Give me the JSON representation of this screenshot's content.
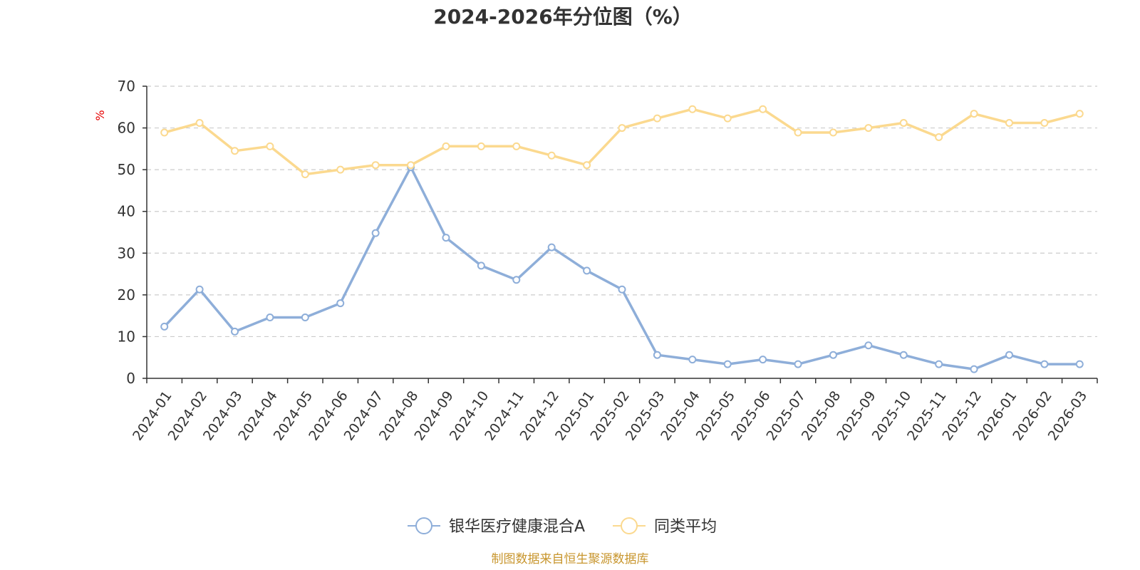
{
  "chart_data": {
    "type": "line",
    "title": "2024-2026年分位图（%）",
    "y_unit": "%",
    "ylim": [
      0,
      70
    ],
    "y_ticks": [
      0,
      10,
      20,
      30,
      40,
      50,
      60,
      70
    ],
    "grid": "horizontal dashed",
    "legend_position": "bottom-center",
    "categories": [
      "2024-01",
      "2024-02",
      "2024-03",
      "2024-04",
      "2024-05",
      "2024-06",
      "2024-07",
      "2024-08",
      "2024-09",
      "2024-10",
      "2024-11",
      "2024-12",
      "2025-01",
      "2025-02",
      "2025-03",
      "2025-04",
      "2025-05",
      "2025-06",
      "2025-07",
      "2025-08",
      "2025-09",
      "2025-10",
      "2025-11",
      "2025-12",
      "2026-01",
      "2026-02",
      "2026-03"
    ],
    "series": [
      {
        "name": "银华医疗健康混合A",
        "color": "#8eaed9",
        "values": [
          12.4,
          21.3,
          11.2,
          14.6,
          14.6,
          18.0,
          34.8,
          50.6,
          33.7,
          27.0,
          23.6,
          31.4,
          25.8,
          21.3,
          5.6,
          4.5,
          3.4,
          4.5,
          3.4,
          5.6,
          7.9,
          5.6,
          3.4,
          2.2,
          5.6,
          3.4,
          3.4
        ]
      },
      {
        "name": "同类平均",
        "color": "#fbd98f",
        "values": [
          58.9,
          61.2,
          54.5,
          55.6,
          48.9,
          50.0,
          51.1,
          51.1,
          55.6,
          55.6,
          55.6,
          53.4,
          51.1,
          60.0,
          62.3,
          64.5,
          62.3,
          64.5,
          58.9,
          58.9,
          60.0,
          61.2,
          57.8,
          63.4,
          61.2,
          61.2,
          63.4
        ]
      }
    ],
    "source_note": "制图数据来自恒生聚源数据库"
  }
}
